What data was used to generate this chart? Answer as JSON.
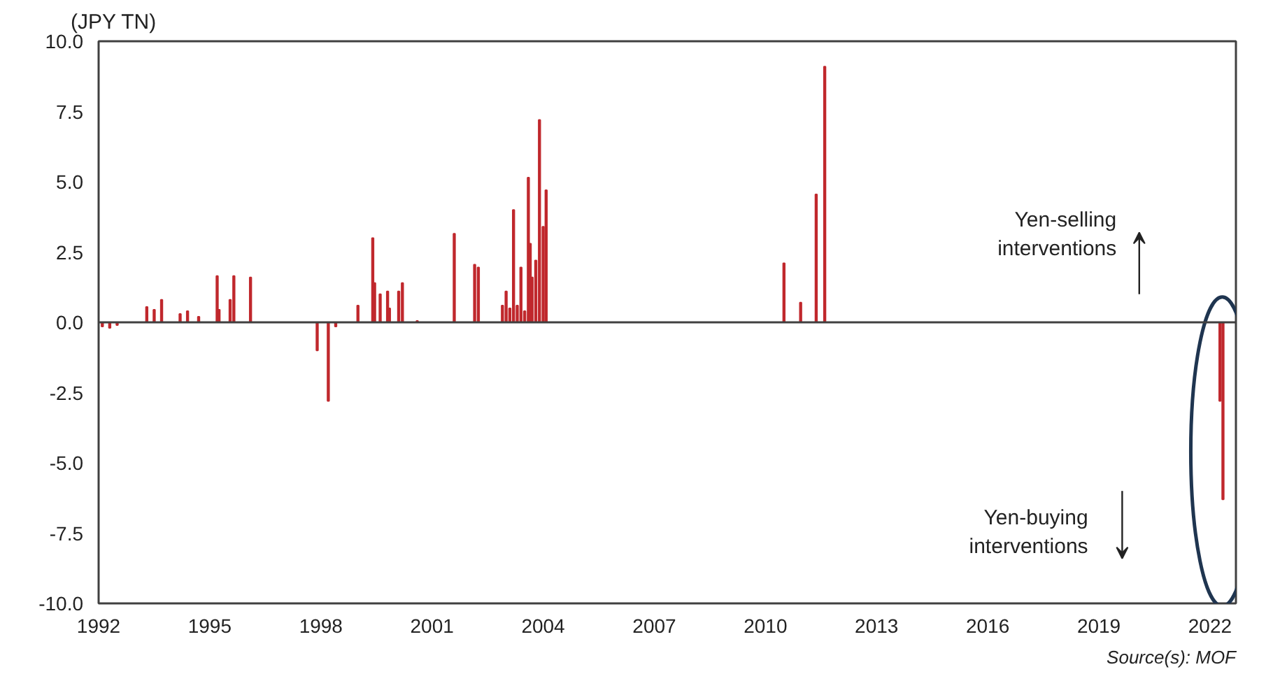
{
  "chart_data": {
    "type": "bar",
    "ylabel": "(JPY TN)",
    "x": [
      1992.1,
      1992.3,
      1992.5,
      1993.3,
      1993.5,
      1993.7,
      1994.2,
      1994.4,
      1994.7,
      1995.2,
      1995.25,
      1995.55,
      1995.65,
      1996.1,
      1997.9,
      1998.2,
      1998.4,
      1999.0,
      1999.4,
      1999.45,
      1999.6,
      1999.8,
      1999.85,
      2000.1,
      2000.2,
      2000.6,
      2001.6,
      2002.15,
      2002.25,
      2002.9,
      2003.0,
      2003.1,
      2003.2,
      2003.3,
      2003.4,
      2003.5,
      2003.6,
      2003.65,
      2003.7,
      2003.8,
      2003.9,
      2004.0,
      2004.08,
      2010.5,
      2010.95,
      2011.37,
      2011.6,
      2022.27,
      2022.35
    ],
    "values": [
      -0.15,
      -0.2,
      -0.1,
      0.55,
      0.45,
      0.8,
      0.3,
      0.4,
      0.2,
      1.65,
      0.45,
      0.8,
      1.65,
      1.6,
      -1.0,
      -2.8,
      -0.15,
      0.6,
      3.0,
      1.4,
      1.0,
      1.1,
      0.5,
      1.1,
      1.4,
      0.05,
      3.15,
      2.05,
      1.95,
      0.6,
      1.1,
      0.5,
      4.0,
      0.6,
      1.95,
      0.4,
      5.15,
      2.8,
      1.6,
      2.2,
      7.2,
      3.4,
      4.7,
      2.1,
      0.7,
      4.55,
      9.1,
      -2.8,
      -6.3
    ],
    "color": "#c0282d",
    "xlim": [
      1992,
      2022.7
    ],
    "xticks": [
      1992,
      1995,
      1998,
      2001,
      2004,
      2007,
      2010,
      2013,
      2016,
      2019,
      2022
    ],
    "ylim": [
      -10,
      10
    ],
    "yticks": [
      {
        "value": 10,
        "label": "10.0"
      },
      {
        "value": 7.5,
        "label": "7.5"
      },
      {
        "value": 5,
        "label": "5.0"
      },
      {
        "value": 2.5,
        "label": "2.5"
      },
      {
        "value": 0,
        "label": "0.0"
      },
      {
        "value": -2.5,
        "label": "-2.5"
      },
      {
        "value": -5,
        "label": "-5.0"
      },
      {
        "value": -7.5,
        "label": "-7.5"
      },
      {
        "value": -10,
        "label": "-10.0"
      }
    ],
    "ref_lines": [
      {
        "axis": "y",
        "value": 0,
        "color": "#404040"
      }
    ],
    "grid": false,
    "annotations": [
      "Yen-selling\ninterventions",
      "Yen-buying\ninterventions",
      "Source(s): MOF"
    ]
  }
}
